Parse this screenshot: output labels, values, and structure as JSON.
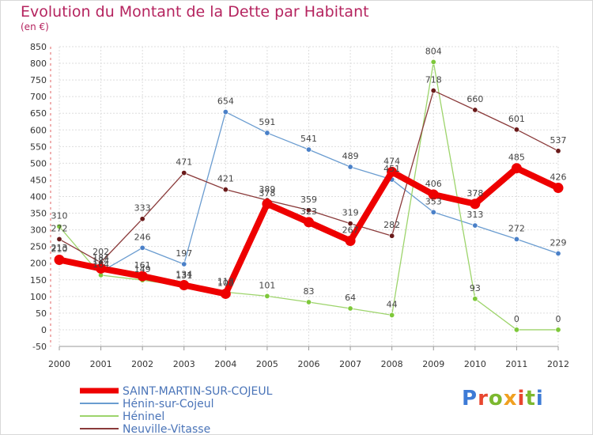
{
  "header": {
    "title": "Evolution du Montant de la Dette par Habitant",
    "subtitle": "(en €)"
  },
  "logo": {
    "text": "Proxiti",
    "letter_colors": [
      "#3d7bd6",
      "#e8462f",
      "#7cb82f",
      "#f0a020",
      "#e8462f",
      "#7cb82f",
      "#3d7bd6"
    ]
  },
  "chart_data": {
    "type": "line",
    "title": "Evolution du Montant de la Dette par Habitant",
    "subtitle": "(en €)",
    "x": [
      "2000",
      "2001",
      "2002",
      "2003",
      "2004",
      "2005",
      "2006",
      "2007",
      "2008",
      "2009",
      "2010",
      "2011",
      "2012"
    ],
    "ylim": [
      -50,
      850
    ],
    "yticks": [
      -50,
      0,
      50,
      100,
      150,
      200,
      250,
      300,
      350,
      400,
      450,
      500,
      550,
      600,
      650,
      700,
      750,
      800,
      850
    ],
    "grid": true,
    "legend_position": "bottom-left",
    "series": [
      {
        "name": "SAINT-MARTIN-SUR-COJEUL",
        "color": "#ee0000",
        "marker_color": "#ee0000",
        "emphasis": true,
        "values": [
          210,
          184,
          161,
          134,
          108,
          378,
          323,
          267,
          474,
          406,
          378,
          485,
          426
        ]
      },
      {
        "name": "Hénin-sur-Cojeul",
        "color": "#6a9cd0",
        "marker_color": "#4a80c8",
        "emphasis": false,
        "values": [
          213,
          174,
          246,
          197,
          654,
          591,
          541,
          489,
          451,
          353,
          313,
          272,
          229
        ]
      },
      {
        "name": "Héninel",
        "color": "#9dd46b",
        "marker_color": "#7ec83a",
        "emphasis": false,
        "values": [
          310,
          164,
          149,
          131,
          113,
          101,
          83,
          64,
          44,
          804,
          93,
          0,
          0
        ]
      },
      {
        "name": "Neuville-Vitasse",
        "color": "#8a3a3a",
        "marker_color": "#6a1a1a",
        "emphasis": false,
        "values": [
          272,
          202,
          333,
          471,
          421,
          389,
          359,
          319,
          282,
          718,
          660,
          601,
          537
        ]
      }
    ]
  }
}
